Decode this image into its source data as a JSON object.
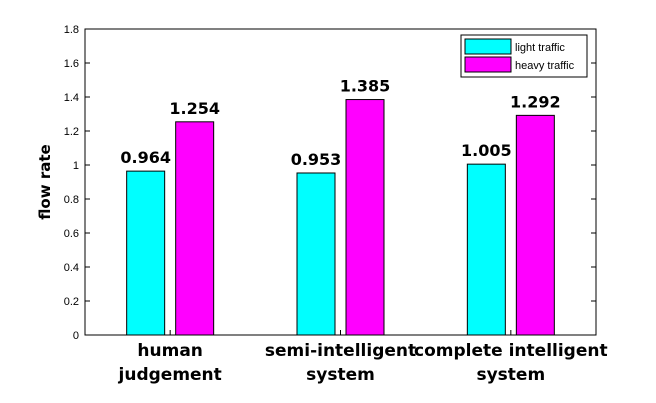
{
  "chart_data": {
    "type": "bar",
    "categories": [
      [
        "human",
        "judgement"
      ],
      [
        "semi-intelligent",
        "system"
      ],
      [
        "complete intelligent",
        "system"
      ]
    ],
    "series": [
      {
        "name": "light traffic",
        "color": "#00ffff",
        "values": [
          0.964,
          0.953,
          1.005
        ],
        "labels": [
          "0.964",
          "0.953",
          "1.005"
        ]
      },
      {
        "name": "heavy traffic",
        "color": "#ff00ff",
        "values": [
          1.254,
          1.385,
          1.292
        ],
        "labels": [
          "1.254",
          "1.385",
          "1.292"
        ]
      }
    ],
    "ylabel": "flow rate",
    "ylim": [
      0,
      1.8
    ],
    "yticks": [
      0,
      0.2,
      0.4,
      0.6,
      0.8,
      1,
      1.2,
      1.4,
      1.6,
      1.8
    ],
    "ytick_labels": [
      "0",
      "0.2",
      "0.4",
      "0.6",
      "0.8",
      "1",
      "1.2",
      "1.4",
      "1.6",
      "1.8"
    ],
    "legend_position": "top-right",
    "grid": false
  }
}
